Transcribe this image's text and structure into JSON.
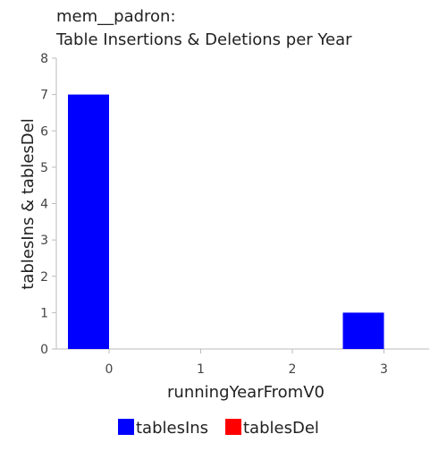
{
  "chart_data": {
    "type": "bar",
    "title": [
      "mem__padron:",
      "Table Insertions & Deletions per Year"
    ],
    "xlabel": "runningYearFromV0",
    "ylabel": "tablesIns & tablesDel",
    "categories": [
      "0",
      "1",
      "2",
      "3"
    ],
    "x_ticks": [
      "0",
      "1",
      "2",
      "3"
    ],
    "y_ticks": [
      "0",
      "1",
      "2",
      "3",
      "4",
      "5",
      "6",
      "7",
      "8"
    ],
    "ylim": [
      0,
      8
    ],
    "series": [
      {
        "name": "tablesIns",
        "color": "#0000ff",
        "values": [
          7,
          0,
          0,
          1
        ]
      },
      {
        "name": "tablesDel",
        "color": "#ff0000",
        "values": [
          0,
          0,
          0,
          0
        ]
      }
    ],
    "legend_position": "bottom",
    "grid": false
  }
}
